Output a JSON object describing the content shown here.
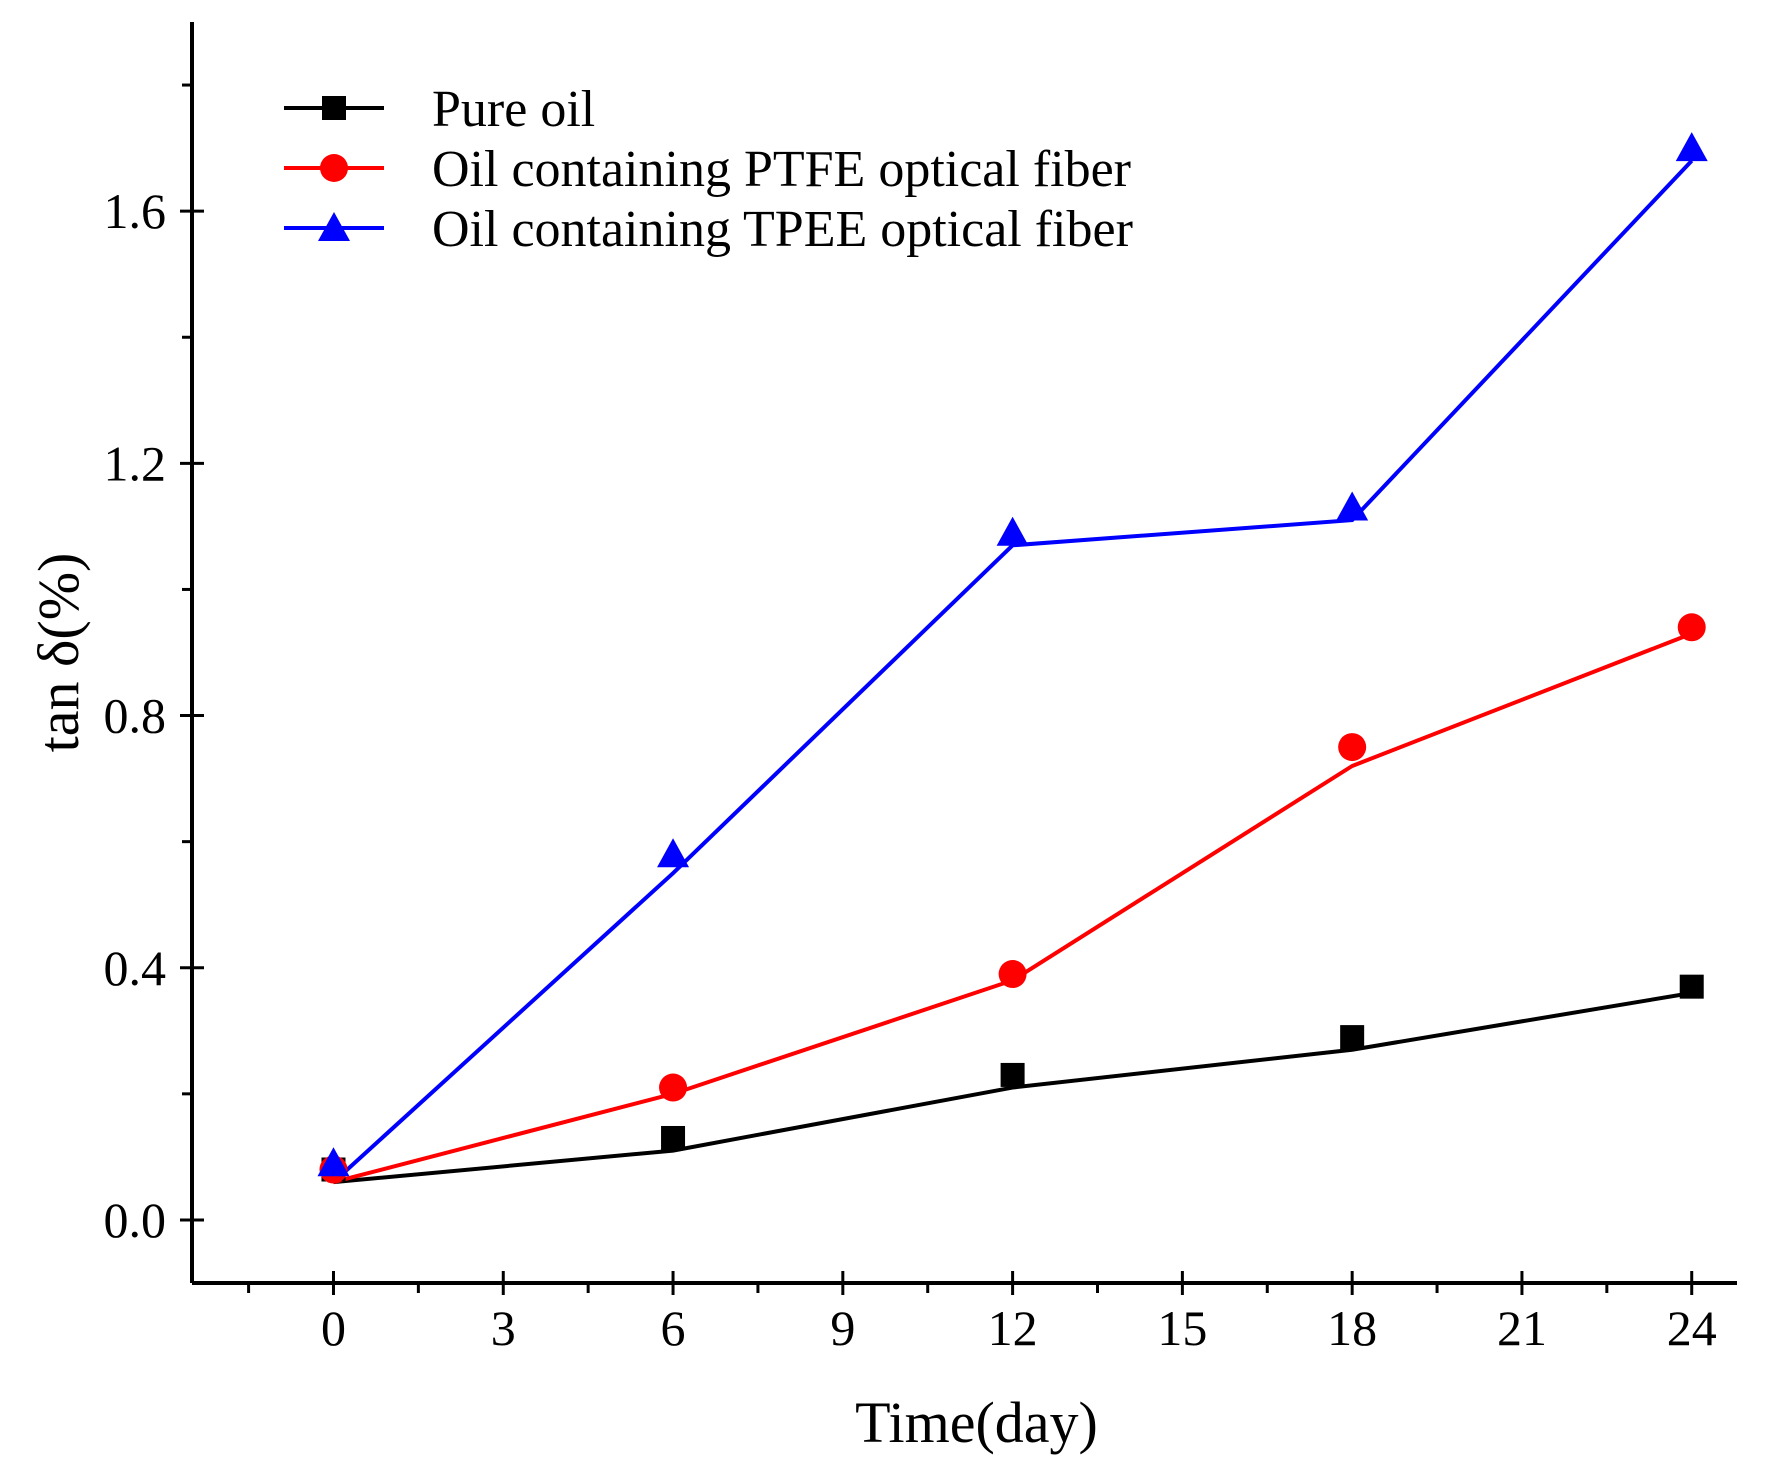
{
  "chart_data": {
    "type": "line",
    "title": "",
    "xlabel": "Time(day)",
    "ylabel": "tan δ(%)",
    "xlim": [
      -2.5,
      24.8
    ],
    "ylim": [
      -0.1,
      1.9
    ],
    "xticks": [
      0,
      3,
      6,
      9,
      12,
      15,
      18,
      21,
      24
    ],
    "xtick_labels": [
      "0",
      "3",
      "6",
      "9",
      "12",
      "15",
      "18",
      "21",
      "24"
    ],
    "yticks": [
      0.0,
      0.4,
      0.8,
      1.2,
      1.6
    ],
    "ytick_labels": [
      "0.0",
      "0.4",
      "0.8",
      "1.2",
      "1.6"
    ],
    "legend_position": "top-left",
    "grid": false,
    "series": [
      {
        "name": "Pure oil",
        "color": "#000000",
        "marker": "square",
        "x": [
          0,
          6,
          12,
          18,
          24
        ],
        "values": [
          0.08,
          0.13,
          0.23,
          0.29,
          0.37
        ],
        "fit": [
          0.06,
          0.11,
          0.21,
          0.27,
          0.36
        ]
      },
      {
        "name": "Oil containing PTFE optical fiber",
        "color": "#ff0000",
        "marker": "circle",
        "x": [
          0,
          6,
          12,
          18,
          24
        ],
        "values": [
          0.08,
          0.21,
          0.39,
          0.75,
          0.94
        ],
        "fit": [
          0.06,
          0.2,
          0.38,
          0.72,
          0.93
        ]
      },
      {
        "name": "Oil containing TPEE optical fiber",
        "color": "#0000ff",
        "marker": "triangle",
        "x": [
          0,
          6,
          12,
          18,
          24
        ],
        "values": [
          0.09,
          0.58,
          1.09,
          1.13,
          1.7
        ],
        "fit": [
          0.06,
          0.55,
          1.07,
          1.11,
          1.68
        ]
      }
    ]
  }
}
